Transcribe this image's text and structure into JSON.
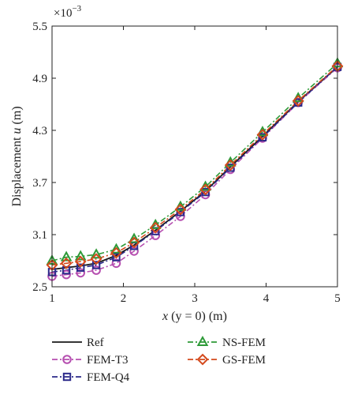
{
  "chart_data": {
    "type": "line",
    "xlabel_parts": [
      "x",
      " (y = 0) (m)"
    ],
    "ylabel_parts": [
      "Displacement ",
      "u",
      " (m)"
    ],
    "y_multiplier": {
      "base": "×10",
      "exp": "−3"
    },
    "xlim": [
      1,
      5
    ],
    "ylim": [
      2.5,
      5.5
    ],
    "x_ticks": [
      1,
      2,
      3,
      4,
      5
    ],
    "x_tick_labels": [
      "1",
      "2",
      "3",
      "4",
      "5"
    ],
    "y_ticks": [
      2.5,
      3.1,
      3.7,
      4.3,
      4.9,
      5.5
    ],
    "y_tick_labels": [
      "2.5",
      "3.1",
      "3.7",
      "4.3",
      "4.9",
      "5.5"
    ],
    "grid": false,
    "legend_position": "below",
    "x": [
      1.0,
      1.2,
      1.4,
      1.62,
      1.9,
      2.15,
      2.45,
      2.8,
      3.15,
      3.5,
      3.95,
      4.45,
      5.0
    ],
    "series": [
      {
        "name": "Ref",
        "color": "#1a1a1a",
        "dash": "solid",
        "marker": "none",
        "values": [
          2.7,
          2.72,
          2.74,
          2.77,
          2.86,
          2.98,
          3.15,
          3.37,
          3.6,
          3.88,
          4.23,
          4.63,
          5.03
        ]
      },
      {
        "name": "FEM-T3",
        "color": "#b64fb0",
        "dash": "dashdot",
        "marker": "circle",
        "values": [
          2.62,
          2.64,
          2.66,
          2.69,
          2.77,
          2.91,
          3.09,
          3.31,
          3.56,
          3.85,
          4.21,
          4.62,
          5.02
        ]
      },
      {
        "name": "FEM-Q4",
        "color": "#2c2a8a",
        "dash": "dashdot",
        "marker": "square",
        "values": [
          2.67,
          2.69,
          2.72,
          2.75,
          2.84,
          2.97,
          3.14,
          3.36,
          3.59,
          3.87,
          4.22,
          4.62,
          5.03
        ]
      },
      {
        "name": "NS-FEM",
        "color": "#2e9a38",
        "dash": "dashdot",
        "marker": "triangle",
        "values": [
          2.8,
          2.84,
          2.85,
          2.87,
          2.93,
          3.05,
          3.21,
          3.42,
          3.65,
          3.93,
          4.28,
          4.67,
          5.07
        ]
      },
      {
        "name": "GS-FEM",
        "color": "#d4491c",
        "dash": "dashdot",
        "marker": "diamond",
        "values": [
          2.75,
          2.77,
          2.79,
          2.82,
          2.89,
          3.01,
          3.18,
          3.39,
          3.62,
          3.9,
          4.25,
          4.64,
          5.04
        ]
      }
    ]
  }
}
